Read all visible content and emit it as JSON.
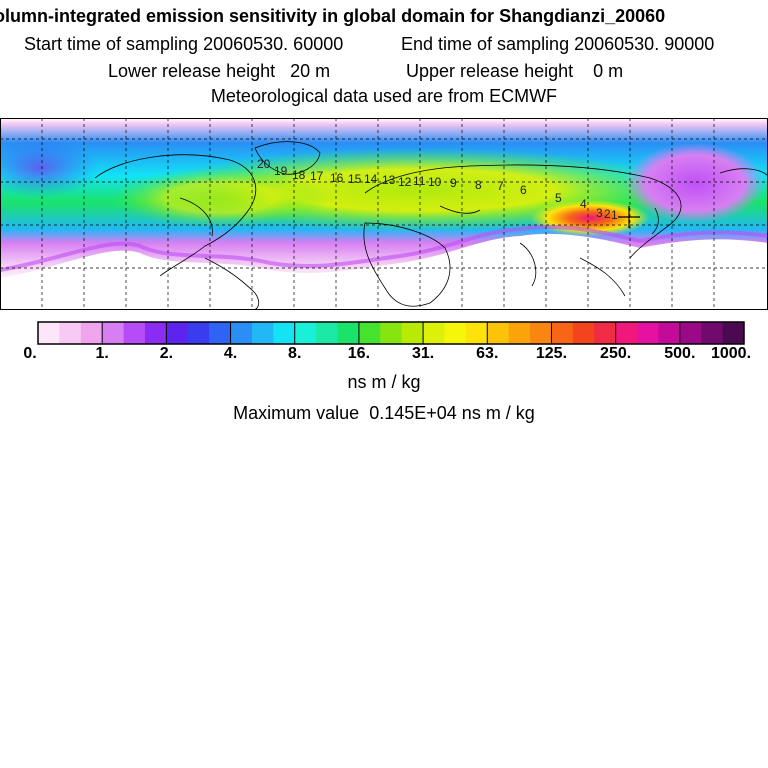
{
  "header": {
    "title": "olumn-integrated emission sensitivity in global domain for Shangdianzi_20060",
    "start_label": "Start time of sampling",
    "start_value": "20060530. 60000",
    "end_label": "End time of sampling",
    "end_value": "20060530. 90000",
    "lower_label": "Lower release height",
    "lower_value": "20 m",
    "upper_label": "Upper release height",
    "upper_value": "0 m",
    "met_line": "Meteorological data used are from ECMWF"
  },
  "map": {
    "trajectory_labels": [
      "1",
      "2",
      "3",
      "4",
      "5",
      "6",
      "7",
      "8",
      "9",
      "10",
      "11",
      "12",
      "13",
      "14",
      "15",
      "16",
      "17",
      "18",
      "19",
      "20"
    ],
    "release_site": "Shangdianzi"
  },
  "colorbar": {
    "tick_labels": [
      "0.",
      "1.",
      "2.",
      "4.",
      "8.",
      "16.",
      "31.",
      "63.",
      "125.",
      "250.",
      "500.",
      "1000."
    ],
    "units": "ns m / kg",
    "colors": [
      "#fde6fa",
      "#f8c9f4",
      "#f0a4ee",
      "#d77ff2",
      "#b64cf5",
      "#8b2cf2",
      "#5c24ee",
      "#3a3cf0",
      "#2e63f4",
      "#2a8ef5",
      "#22b8f5",
      "#13e3f5",
      "#1af0d8",
      "#1be9a5",
      "#1ae36a",
      "#45e22e",
      "#86e50f",
      "#b8ea06",
      "#ddf00a",
      "#f6f60a",
      "#fde30a",
      "#fcc308",
      "#fba409",
      "#f98610",
      "#f66616",
      "#f3441c",
      "#f12a46",
      "#f0187a",
      "#e511a2",
      "#c40a99",
      "#9b0a86",
      "#700a6c",
      "#4a0950"
    ]
  },
  "max_label": "Maximum value",
  "max_value": "0.145E+04 ns m / kg"
}
